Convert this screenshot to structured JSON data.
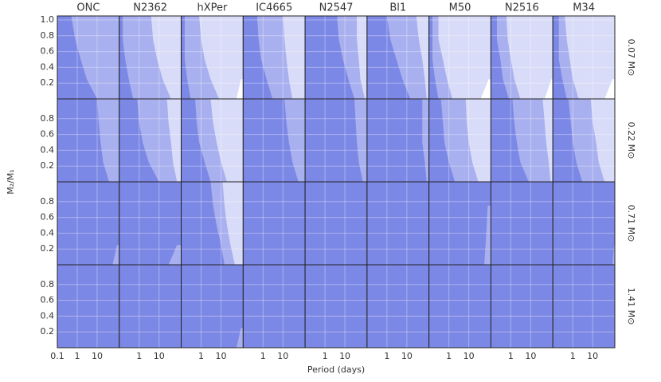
{
  "chart_data": {
    "type": "panel-grid",
    "columns": [
      "ONC",
      "N2362",
      "hXPer",
      "IC4665",
      "N2547",
      "Bl1",
      "M50",
      "N2516",
      "M34"
    ],
    "rows": [
      "0.07 M⊙",
      "0.22 M⊙",
      "0.71 M⊙",
      "1.41 M⊙"
    ],
    "xlabel": "Period (days)",
    "ylabel": "M₂/M₁",
    "xlim": [
      0.1,
      130
    ],
    "ylim": [
      0,
      1.05
    ],
    "log_x": true,
    "grid": true,
    "yticks": [
      [
        0.2,
        0.4,
        0.6,
        0.8,
        {
          "value": 1.0,
          "label": "1.0"
        }
      ],
      [
        0.2,
        0.4,
        0.6,
        0.8
      ],
      [
        0.2,
        0.4,
        0.6,
        0.8
      ],
      [
        0.2,
        0.4,
        0.6,
        0.8
      ]
    ],
    "xticks": [
      [
        0.1,
        1,
        10
      ],
      [
        1,
        10
      ],
      [
        1,
        10
      ],
      [
        1,
        10
      ],
      [
        1,
        10
      ],
      [
        1,
        10
      ],
      [
        1,
        10
      ],
      [
        1,
        10
      ],
      [
        1,
        10
      ]
    ],
    "colors": {
      "base": "#7c88e6",
      "medium": "#a9b0ef",
      "light": "#d9dcf8",
      "white": "#ffffff"
    },
    "q_levels": [
      0,
      0.25,
      0.5,
      0.75,
      1.05
    ],
    "panels": [
      [
        {
          "medium": [
            10,
            3,
            1.5,
            0.8,
            0.5
          ]
        },
        {
          "medium": [
            0.5,
            0.3,
            0.2,
            0.15,
            0.15
          ],
          "light": [
            40,
            15,
            8,
            5,
            4
          ]
        },
        {
          "medium": [
            0.3,
            0.2,
            0.15,
            0.15,
            0.15
          ],
          "light": [
            8,
            3,
            1.5,
            1,
            0.8
          ],
          "white": [
            60,
            100,
            null,
            null,
            null
          ]
        },
        {
          "medium": [
            3,
            1.5,
            0.8,
            0.6,
            0.5
          ],
          "light": [
            30,
            20,
            15,
            12,
            10
          ]
        },
        {
          "medium": [
            30,
            15,
            8,
            5,
            4
          ],
          "light": [
            100,
            60,
            50,
            40,
            40
          ]
        },
        {
          "medium": [
            15,
            6,
            3,
            1.5,
            1
          ],
          "light": [
            100,
            80,
            60,
            40,
            30
          ]
        },
        {
          "medium": [
            0.3,
            0.2,
            0.15,
            0.15,
            0.15
          ],
          "light": [
            1.5,
            0.8,
            0.5,
            0.3,
            0.3
          ],
          "white": [
            40,
            100,
            null,
            null,
            null
          ]
        },
        {
          "medium": [
            0.8,
            0.4,
            0.3,
            0.2,
            0.2
          ],
          "light": [
            3,
            1.5,
            1,
            0.7,
            0.6
          ],
          "white": [
            50,
            110,
            null,
            null,
            null
          ]
        },
        {
          "medium": [
            0.5,
            0.3,
            0.2,
            0.2,
            0.2
          ],
          "light": [
            2,
            1,
            0.7,
            0.5,
            0.4
          ],
          "white": [
            40,
            100,
            null,
            null,
            null
          ]
        }
      ],
      [
        {
          "medium": [
            40,
            20,
            15,
            12,
            10
          ]
        },
        {
          "medium": [
            10,
            3,
            1.5,
            1,
            0.8
          ],
          "light": [
            80,
            50,
            40,
            30,
            25
          ]
        },
        {
          "medium": [
            3,
            1.5,
            0.8,
            0.6,
            0.5
          ],
          "light": [
            20,
            10,
            6,
            4,
            3
          ]
        },
        {
          "medium": [
            60,
            30,
            20,
            15,
            12
          ]
        },
        {
          "medium": [
            80,
            50,
            40,
            35,
            30
          ]
        },
        {
          "medium": [
            100,
            80,
            60,
            60,
            60
          ]
        },
        {
          "medium": [
            2,
            1,
            0.6,
            0.5,
            0.4
          ],
          "light": [
            30,
            15,
            10,
            8,
            7
          ]
        },
        {
          "medium": [
            8,
            3,
            2,
            1.5,
            1.2
          ],
          "light": [
            100,
            80,
            60,
            50,
            40
          ]
        },
        {
          "medium": [
            3,
            1.5,
            1,
            0.8,
            0.6
          ],
          "light": [
            40,
            20,
            15,
            10,
            8
          ]
        }
      ],
      [
        {
          "medium": [
            60,
            100,
            null,
            null,
            null
          ]
        },
        {
          "medium": [
            30,
            80,
            null,
            null,
            null
          ]
        },
        {
          "medium": [
            15,
            10,
            6,
            4,
            3
          ],
          "light": [
            50,
            30,
            20,
            15,
            12
          ]
        },
        {},
        {},
        {},
        {
          "medium": [
            60,
            70,
            80,
            90,
            null
          ]
        },
        {},
        {
          "medium": [
            100,
            120,
            null,
            null,
            null
          ]
        }
      ],
      [
        {},
        {},
        {
          "medium": [
            60,
            100,
            null,
            null,
            null
          ]
        },
        {},
        {},
        {},
        {},
        {},
        {}
      ]
    ]
  }
}
